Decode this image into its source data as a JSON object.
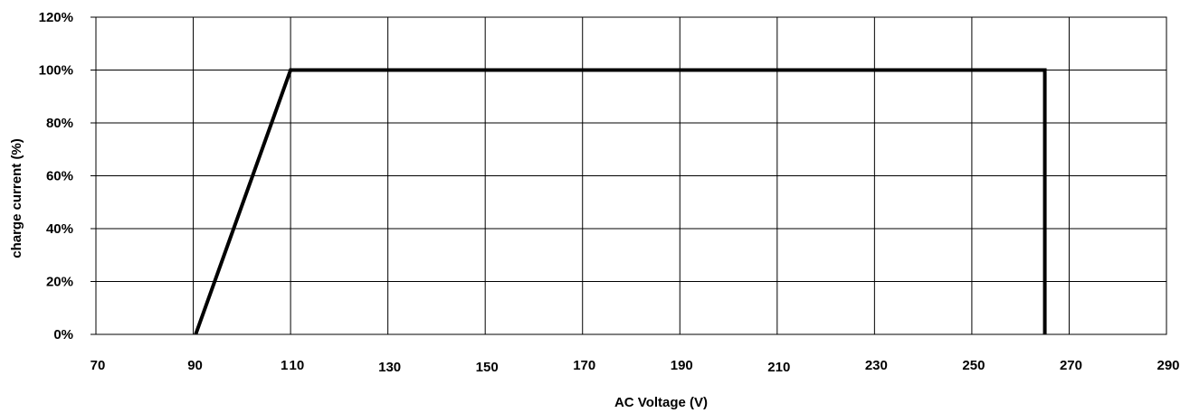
{
  "chart_data": {
    "type": "line",
    "title": "",
    "xlabel": "AC Voltage (V)",
    "ylabel": "charge current (%)",
    "xlim": [
      70,
      290
    ],
    "ylim": [
      0,
      120
    ],
    "x_ticks": [
      70,
      90,
      110,
      130,
      150,
      170,
      190,
      210,
      230,
      250,
      270,
      290
    ],
    "x_tick_labels": [
      "70",
      "90",
      "1 10",
      "130",
      "150",
      "170",
      "190",
      "210",
      "230",
      "250",
      "270",
      "290"
    ],
    "y_ticks": [
      0,
      20,
      40,
      60,
      80,
      100,
      120
    ],
    "y_tick_labels": [
      "0%",
      "20%",
      "40%",
      "60%",
      "80%",
      "100%",
      "120%"
    ],
    "grid": true,
    "legend": "none",
    "series": [
      {
        "x": [
          90.5,
          110,
          265,
          265
        ],
        "y": [
          0,
          100,
          100,
          0
        ],
        "color": "#000000"
      }
    ]
  }
}
